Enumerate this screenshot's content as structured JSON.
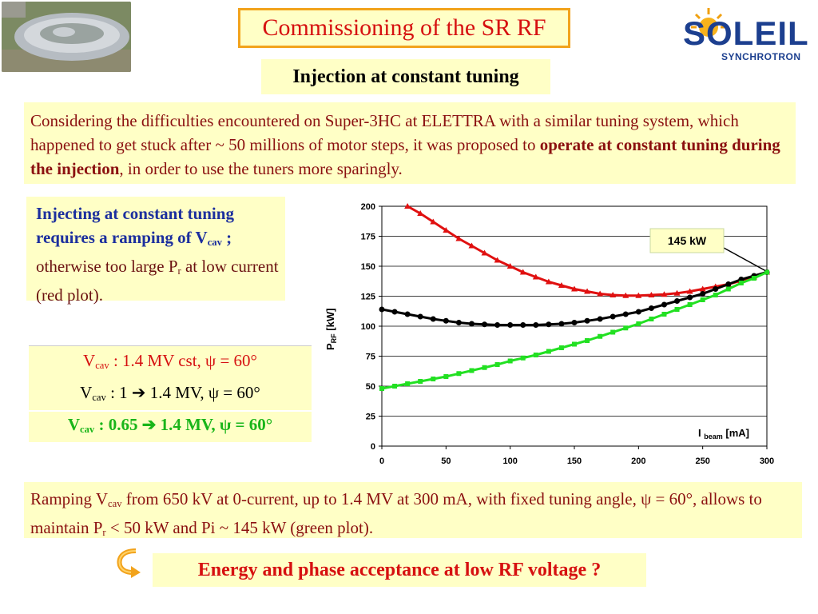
{
  "title": "Commissioning of the SR RF",
  "logo": {
    "word": "SOLEIL",
    "sub": "SYNCHROTRON"
  },
  "subtitle": "Injection at constant tuning",
  "para1": {
    "part1": "Considering the difficulties encountered on Super-3HC at ELETTRA with a similar tuning system, which happened to get stuck after ~ 50 millions of motor steps, it was proposed to ",
    "bold": "operate at constant tuning during the injection",
    "part2": ", in order to use the tuners more sparingly."
  },
  "side_note": {
    "bold1": "Injecting at constant tuning requires a ramping of V",
    "bold1_sub": "cav",
    "bold1_end": " ;",
    "rest1": " otherwise too large P",
    "rest1_sub": "r",
    "rest2": " at low current (red plot)."
  },
  "legend": {
    "red": {
      "v": "V",
      "sub": "cav",
      "text": " : 1.4 MV cst,  ψ = 60°"
    },
    "black": {
      "v": "V",
      "sub": "cav",
      "text": " : 1 ",
      "arrow": "➔",
      "text2": " 1.4 MV, ψ = 60°"
    },
    "green": {
      "v": "V",
      "sub": "cav",
      "text": " : 0.65 ",
      "arrow": "➔",
      "text2": " 1.4 MV, ψ = 60°"
    }
  },
  "para2": {
    "p1": "Ramping V",
    "p1_sub": "cav",
    "p2": " from 650 kV at 0-current, up to 1.4 MV at 300 mA, with fixed tuning angle, ψ = 60°, allows to maintain P",
    "p2_sub": "r",
    "p3": " < 50 kW and  Pi ~ 145 kW (green plot)."
  },
  "question": "Energy and phase acceptance at low RF voltage ?",
  "colors": {
    "red": "#e01010",
    "black": "#000000",
    "green": "#22e022",
    "box": "#ffffc6"
  },
  "chart_data": {
    "type": "line",
    "xlabel": {
      "main": "I",
      "sub": "beam",
      "unit": " [mA]"
    },
    "ylabel": {
      "main": "P",
      "sub": "RF",
      "unit": " [kW]"
    },
    "xlim": [
      0,
      300
    ],
    "ylim": [
      0,
      200
    ],
    "xticks": [
      "0",
      "50",
      "100",
      "150",
      "200",
      "250",
      "300"
    ],
    "yticks": [
      "0",
      "25",
      "50",
      "75",
      "100",
      "125",
      "150",
      "175",
      "200"
    ],
    "grid": true,
    "annotation": {
      "text": "145 kW",
      "x": 300,
      "y": 145
    },
    "series": [
      {
        "color": "red",
        "x": [
          20,
          30,
          40,
          50,
          60,
          70,
          80,
          90,
          100,
          110,
          120,
          130,
          140,
          150,
          160,
          170,
          180,
          190,
          200,
          210,
          220,
          230,
          240,
          250,
          260,
          270,
          280,
          290,
          300
        ],
        "y": [
          200,
          194,
          187,
          180,
          173,
          167,
          161,
          155,
          150,
          145,
          141,
          137,
          134,
          131,
          129,
          127,
          126,
          125.5,
          125.5,
          126,
          126.5,
          127.5,
          129,
          131,
          133,
          135,
          138,
          141,
          145
        ]
      },
      {
        "color": "black",
        "x": [
          0,
          10,
          20,
          30,
          40,
          50,
          60,
          70,
          80,
          90,
          100,
          110,
          120,
          130,
          140,
          150,
          160,
          170,
          180,
          190,
          200,
          210,
          220,
          230,
          240,
          250,
          260,
          270,
          280,
          290,
          300
        ],
        "y": [
          114,
          112,
          110,
          108,
          106,
          104.5,
          103,
          102,
          101.5,
          101,
          101,
          101,
          101,
          101.5,
          102,
          103,
          104.5,
          106,
          108,
          110,
          112,
          115,
          118,
          121,
          124,
          127,
          131,
          135,
          139,
          142,
          145
        ]
      },
      {
        "color": "green",
        "x": [
          0,
          10,
          20,
          30,
          40,
          50,
          60,
          70,
          80,
          90,
          100,
          110,
          120,
          130,
          140,
          150,
          160,
          170,
          180,
          190,
          200,
          210,
          220,
          230,
          240,
          250,
          260,
          270,
          280,
          290,
          300
        ],
        "y": [
          48,
          50,
          52,
          54,
          56,
          58,
          60.5,
          63,
          65.5,
          68,
          71,
          73.5,
          76,
          79,
          82,
          85,
          88,
          91.5,
          95,
          98.5,
          102,
          106,
          110,
          114,
          118,
          122,
          126,
          131,
          136,
          140,
          145
        ]
      }
    ]
  }
}
